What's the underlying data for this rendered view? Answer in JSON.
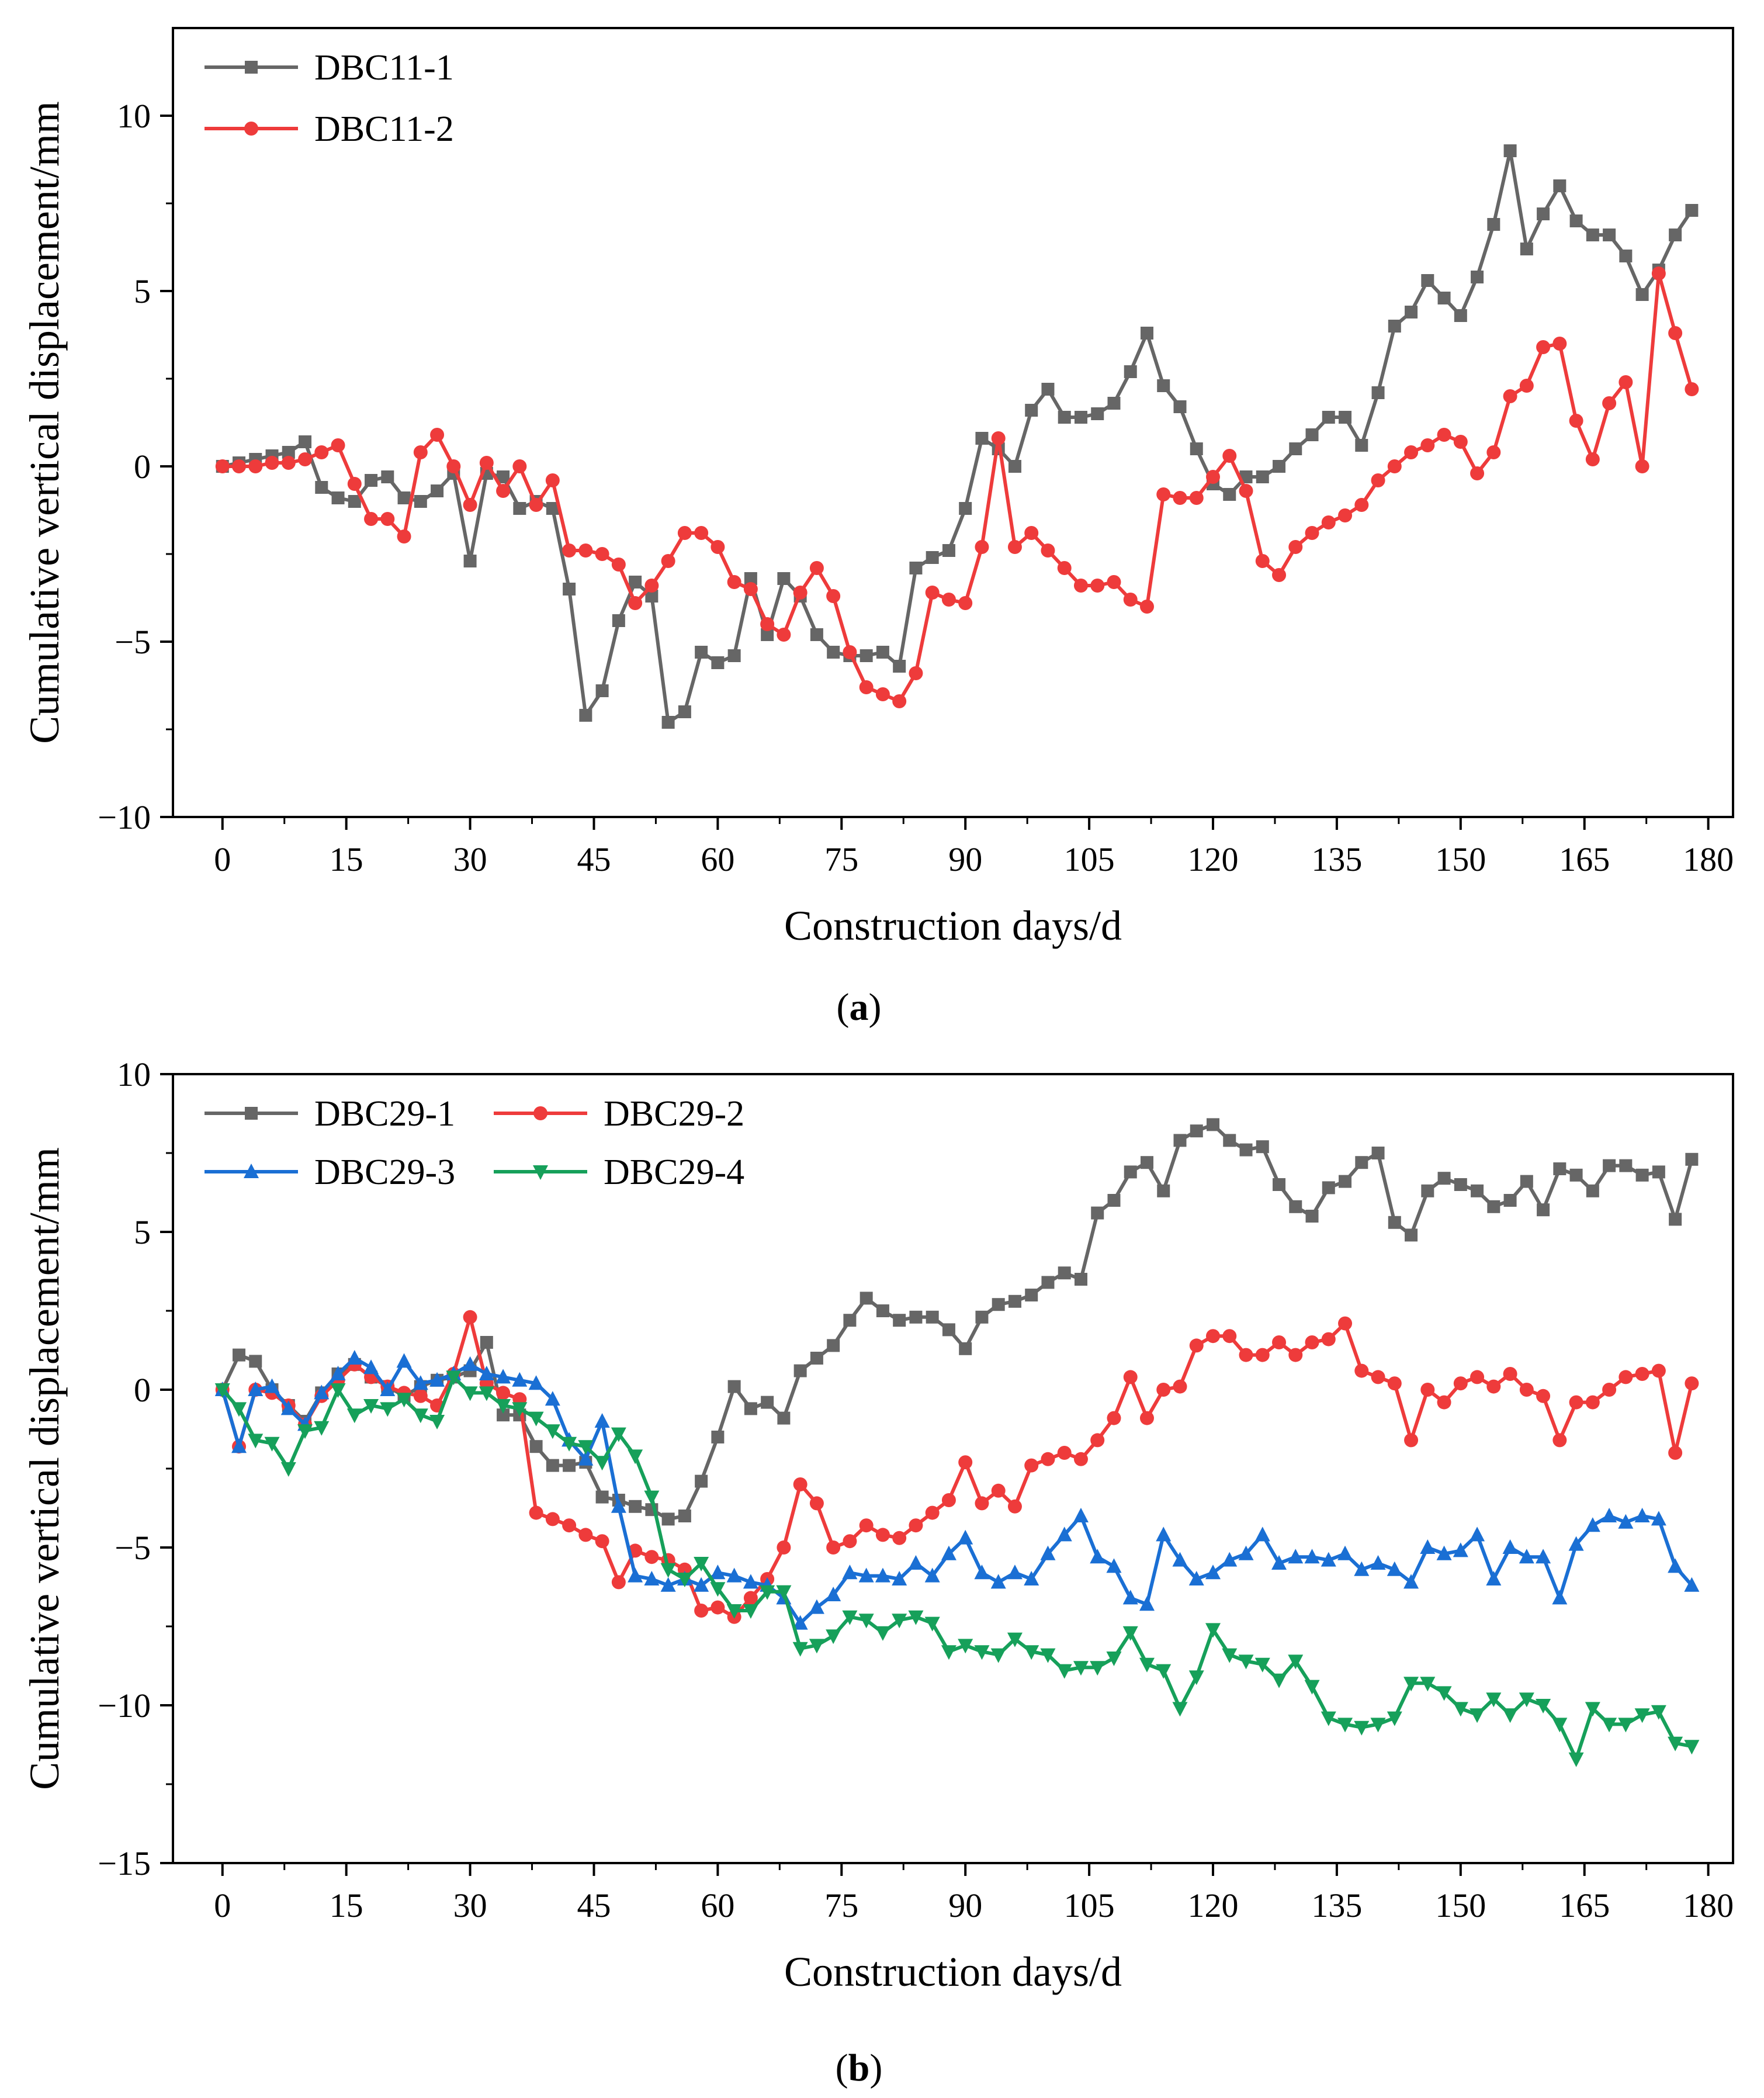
{
  "chart_data": [
    {
      "type": "line",
      "panel_label": "a",
      "xlabel": "Construction days/d",
      "ylabel": "Cumulative vertical displacement/mm",
      "xlim": [
        -6,
        183
      ],
      "ylim": [
        -10,
        12.5
      ],
      "xticks": [
        0,
        15,
        30,
        45,
        60,
        75,
        90,
        105,
        120,
        135,
        150,
        165,
        180
      ],
      "yticks": [
        -10,
        -5,
        0,
        5,
        10
      ],
      "ytick_labels": [
        "−10",
        "−5",
        "0",
        "5",
        "10"
      ],
      "legend_position": "top-left",
      "x": [
        0,
        2,
        4,
        6,
        8,
        10,
        12,
        14,
        16,
        18,
        20,
        22,
        24,
        26,
        28,
        30,
        32,
        34,
        36,
        38,
        40,
        42,
        44,
        46,
        48,
        50,
        52,
        54,
        56,
        58,
        60,
        62,
        64,
        66,
        68,
        70,
        72,
        74,
        76,
        78,
        80,
        82,
        84,
        86,
        88,
        90,
        92,
        94,
        96,
        98,
        100,
        102,
        104,
        106,
        108,
        110,
        112,
        114,
        116,
        118,
        120,
        122,
        124,
        126,
        128,
        130,
        132,
        134,
        136,
        138,
        140,
        142,
        144,
        146,
        148,
        150,
        152,
        154,
        156,
        158,
        160,
        162,
        164,
        166,
        168,
        170,
        172,
        174,
        176,
        178
      ],
      "series": [
        {
          "name": "DBC11-1",
          "color": "#666666",
          "marker": "square",
          "values": [
            0,
            0.1,
            0.2,
            0.3,
            0.4,
            0.7,
            -0.6,
            -0.9,
            -1.0,
            -0.4,
            -0.3,
            -0.9,
            -1.0,
            -0.7,
            -0.2,
            -2.7,
            -0.2,
            -0.3,
            -1.2,
            -1.0,
            -1.2,
            -3.5,
            -7.1,
            -6.4,
            -4.4,
            -3.3,
            -3.7,
            -7.3,
            -7.0,
            -5.3,
            -5.6,
            -5.4,
            -3.2,
            -4.8,
            -3.2,
            -3.7,
            -4.8,
            -5.3,
            -5.4,
            -5.4,
            -5.3,
            -5.7,
            -2.9,
            -2.6,
            -2.4,
            -1.2,
            0.8,
            0.5,
            0.0,
            1.6,
            2.2,
            1.4,
            1.4,
            1.5,
            1.8,
            2.7,
            3.8,
            2.3,
            1.7,
            0.5,
            -0.5,
            -0.8,
            -0.3,
            -0.3,
            0.0,
            0.5,
            0.9,
            1.4,
            1.4,
            0.6,
            2.1,
            4.0,
            4.4,
            5.3,
            4.8,
            4.3,
            5.4,
            6.9,
            9.0,
            6.2,
            7.2,
            8.0,
            7.0,
            6.6,
            6.6,
            6.0,
            4.9,
            5.6,
            6.6,
            7.3
          ]
        },
        {
          "name": "DBC11-2",
          "color": "#ee3b3b",
          "marker": "circle",
          "values": [
            0,
            0,
            0,
            0.1,
            0.1,
            0.2,
            0.4,
            0.6,
            -0.5,
            -1.5,
            -1.5,
            -2.0,
            0.4,
            0.9,
            0.0,
            -1.1,
            0.1,
            -0.7,
            0.0,
            -1.1,
            -0.4,
            -2.4,
            -2.4,
            -2.5,
            -2.8,
            -3.9,
            -3.4,
            -2.7,
            -1.9,
            -1.9,
            -2.3,
            -3.3,
            -3.5,
            -4.5,
            -4.8,
            -3.6,
            -2.9,
            -3.7,
            -5.3,
            -6.3,
            -6.5,
            -6.7,
            -5.9,
            -3.6,
            -3.8,
            -3.9,
            -2.3,
            0.8,
            -2.3,
            -1.9,
            -2.4,
            -2.9,
            -3.4,
            -3.4,
            -3.3,
            -3.8,
            -4.0,
            -0.8,
            -0.9,
            -0.9,
            -0.3,
            0.3,
            -0.7,
            -2.7,
            -3.1,
            -2.3,
            -1.9,
            -1.6,
            -1.4,
            -1.1,
            -0.4,
            0.0,
            0.4,
            0.6,
            0.9,
            0.7,
            -0.2,
            0.4,
            2.0,
            2.3,
            3.4,
            3.5,
            1.3,
            0.2,
            1.8,
            2.4,
            0.0,
            5.5,
            3.8,
            2.2
          ]
        }
      ]
    },
    {
      "type": "line",
      "panel_label": "b",
      "xlabel": "Construction days/d",
      "ylabel": "Cumulative vertical displacement/mm",
      "xlim": [
        -6,
        183
      ],
      "ylim": [
        -15,
        10
      ],
      "xticks": [
        0,
        15,
        30,
        45,
        60,
        75,
        90,
        105,
        120,
        135,
        150,
        165,
        180
      ],
      "yticks": [
        -15,
        -10,
        -5,
        0,
        5,
        10
      ],
      "ytick_labels": [
        "−15",
        "−10",
        "−5",
        "0",
        "5",
        "10"
      ],
      "legend_position": "top-left",
      "x": [
        0,
        2,
        4,
        6,
        8,
        10,
        12,
        14,
        16,
        18,
        20,
        22,
        24,
        26,
        28,
        30,
        32,
        34,
        36,
        38,
        40,
        42,
        44,
        46,
        48,
        50,
        52,
        54,
        56,
        58,
        60,
        62,
        64,
        66,
        68,
        70,
        72,
        74,
        76,
        78,
        80,
        82,
        84,
        86,
        88,
        90,
        92,
        94,
        96,
        98,
        100,
        102,
        104,
        106,
        108,
        110,
        112,
        114,
        116,
        118,
        120,
        122,
        124,
        126,
        128,
        130,
        132,
        134,
        136,
        138,
        140,
        142,
        144,
        146,
        148,
        150,
        152,
        154,
        156,
        158,
        160,
        162,
        164,
        166,
        168,
        170,
        172,
        174,
        176,
        178
      ],
      "series": [
        {
          "name": "DBC29-1",
          "color": "#666666",
          "marker": "square",
          "values": [
            0,
            1.1,
            0.9,
            0.0,
            -0.5,
            -1.0,
            -0.1,
            0.5,
            0.8,
            0.4,
            0.1,
            -0.2,
            0.1,
            0.3,
            0.4,
            0.6,
            1.5,
            -0.8,
            -0.8,
            -1.8,
            -2.4,
            -2.4,
            -2.3,
            -3.4,
            -3.5,
            -3.7,
            -3.8,
            -4.1,
            -4.0,
            -2.9,
            -1.5,
            0.1,
            -0.6,
            -0.4,
            -0.9,
            0.6,
            1.0,
            1.4,
            2.2,
            2.9,
            2.5,
            2.2,
            2.3,
            2.3,
            1.9,
            1.3,
            2.3,
            2.7,
            2.8,
            3.0,
            3.4,
            3.7,
            3.5,
            5.6,
            6.0,
            6.9,
            7.2,
            6.3,
            7.9,
            8.2,
            8.4,
            7.9,
            7.6,
            7.7,
            6.5,
            5.8,
            5.5,
            6.4,
            6.6,
            7.2,
            7.5,
            5.3,
            4.9,
            6.3,
            6.7,
            6.5,
            6.3,
            5.8,
            6.0,
            6.6,
            5.7,
            7.0,
            6.8,
            6.3,
            7.1,
            7.1,
            6.8,
            6.9,
            5.4,
            7.3
          ]
        },
        {
          "name": "DBC29-2",
          "color": "#ee3b3b",
          "marker": "circle",
          "values": [
            0,
            -1.8,
            0.0,
            -0.1,
            -0.5,
            -1.1,
            -0.2,
            0.3,
            0.8,
            0.4,
            0.1,
            -0.1,
            -0.2,
            -0.5,
            0.5,
            2.3,
            0.2,
            -0.1,
            -0.3,
            -3.9,
            -4.1,
            -4.3,
            -4.6,
            -4.8,
            -6.1,
            -5.1,
            -5.3,
            -5.4,
            -5.7,
            -7.0,
            -6.9,
            -7.2,
            -6.6,
            -6.0,
            -5.0,
            -3.0,
            -3.6,
            -5.0,
            -4.8,
            -4.3,
            -4.6,
            -4.7,
            -4.3,
            -3.9,
            -3.5,
            -2.3,
            -3.6,
            -3.2,
            -3.7,
            -2.4,
            -2.2,
            -2.0,
            -2.2,
            -1.6,
            -0.9,
            0.4,
            -0.9,
            0.0,
            0.1,
            1.4,
            1.7,
            1.7,
            1.1,
            1.1,
            1.5,
            1.1,
            1.5,
            1.6,
            2.1,
            0.6,
            0.4,
            0.2,
            -1.6,
            0.0,
            -0.4,
            0.2,
            0.4,
            0.1,
            0.5,
            0.0,
            -0.2,
            -1.6,
            -0.4,
            -0.4,
            0.0,
            0.4,
            0.5,
            0.6,
            -2.0,
            0.2
          ]
        },
        {
          "name": "DBC29-3",
          "color": "#1a6fd4",
          "marker": "triangle-up",
          "values": [
            0,
            -1.8,
            0.0,
            0.1,
            -0.6,
            -1.1,
            -0.1,
            0.5,
            1.0,
            0.7,
            0.0,
            0.9,
            0.2,
            0.3,
            0.5,
            0.8,
            0.5,
            0.4,
            0.3,
            0.2,
            -0.3,
            -1.6,
            -2.2,
            -1.0,
            -3.7,
            -5.9,
            -6.0,
            -6.2,
            -6.0,
            -6.2,
            -5.8,
            -5.9,
            -6.1,
            -6.2,
            -6.6,
            -7.4,
            -6.9,
            -6.5,
            -5.8,
            -5.9,
            -5.9,
            -6.0,
            -5.5,
            -5.9,
            -5.2,
            -4.7,
            -5.8,
            -6.1,
            -5.8,
            -6.0,
            -5.2,
            -4.6,
            -4.0,
            -5.3,
            -5.6,
            -6.6,
            -6.8,
            -4.6,
            -5.4,
            -6.0,
            -5.8,
            -5.4,
            -5.2,
            -4.6,
            -5.5,
            -5.3,
            -5.3,
            -5.4,
            -5.2,
            -5.7,
            -5.5,
            -5.7,
            -6.1,
            -5.0,
            -5.2,
            -5.1,
            -4.6,
            -6.0,
            -5.0,
            -5.3,
            -5.3,
            -6.6,
            -4.9,
            -4.3,
            -4.0,
            -4.2,
            -4.0,
            -4.1,
            -5.6,
            -6.2
          ]
        },
        {
          "name": "DBC29-4",
          "color": "#16a05a",
          "marker": "triangle-down",
          "values": [
            0,
            -0.6,
            -1.6,
            -1.7,
            -2.5,
            -1.3,
            -1.2,
            0.0,
            -0.8,
            -0.5,
            -0.6,
            -0.3,
            -0.8,
            -1.0,
            0.4,
            -0.1,
            -0.1,
            -0.5,
            -0.6,
            -0.9,
            -1.3,
            -1.7,
            -1.8,
            -2.3,
            -1.4,
            -2.1,
            -3.4,
            -5.7,
            -6.0,
            -5.5,
            -6.3,
            -7.0,
            -7.0,
            -6.4,
            -6.4,
            -8.2,
            -8.1,
            -7.8,
            -7.2,
            -7.3,
            -7.7,
            -7.3,
            -7.2,
            -7.4,
            -8.3,
            -8.1,
            -8.3,
            -8.4,
            -7.9,
            -8.3,
            -8.4,
            -8.9,
            -8.8,
            -8.8,
            -8.5,
            -7.7,
            -8.7,
            -8.9,
            -10.1,
            -9.1,
            -7.6,
            -8.4,
            -8.6,
            -8.7,
            -9.2,
            -8.6,
            -9.4,
            -10.4,
            -10.6,
            -10.7,
            -10.6,
            -10.4,
            -9.3,
            -9.3,
            -9.6,
            -10.1,
            -10.3,
            -9.8,
            -10.3,
            -9.8,
            -10.0,
            -10.6,
            -11.7,
            -10.1,
            -10.6,
            -10.6,
            -10.3,
            -10.2,
            -11.2,
            -11.3
          ]
        }
      ]
    }
  ]
}
